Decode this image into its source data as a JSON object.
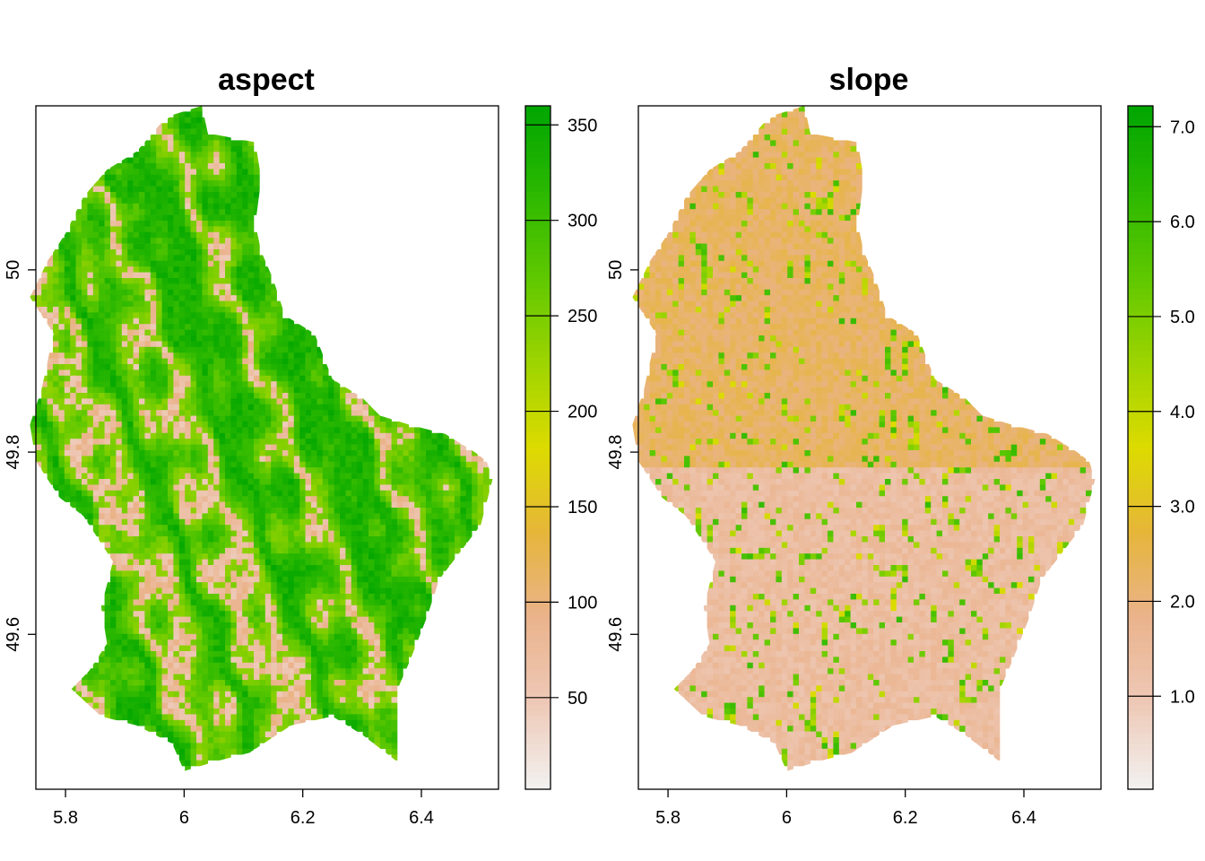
{
  "figure": {
    "colors": {
      "ramp": [
        "#F2F2F2",
        "#EEC9B7",
        "#EAB38D",
        "#E6B53B",
        "#DDDB00",
        "#9DD400",
        "#5FC800",
        "#2BB800",
        "#00A600"
      ],
      "frame": "#000000",
      "background": "#FFFFFF"
    }
  },
  "chart_data": [
    {
      "type": "heatmap",
      "title": "aspect",
      "xlabel": "",
      "ylabel": "",
      "x_ticks": [
        5.8,
        6,
        6.2,
        6.4
      ],
      "x_tick_labels": [
        "5.8",
        "6",
        "6.2",
        "6.4"
      ],
      "y_ticks": [
        49.6,
        49.8,
        50
      ],
      "y_tick_labels": [
        "49.6",
        "49.8",
        "50"
      ],
      "xlim": [
        5.75,
        6.53
      ],
      "ylim": [
        49.43,
        50.18
      ],
      "data_extent": {
        "x": [
          5.74,
          6.53
        ],
        "y": [
          49.45,
          50.18
        ]
      },
      "value_range": [
        0,
        360
      ],
      "legend": {
        "position": "right",
        "ticks": [
          50,
          100,
          150,
          200,
          250,
          300,
          350
        ],
        "tick_labels": [
          "50",
          "100",
          "150",
          "200",
          "250",
          "300",
          "350"
        ],
        "range": [
          2,
          360
        ]
      },
      "grid": false,
      "texture": "aspect"
    },
    {
      "type": "heatmap",
      "title": "slope",
      "xlabel": "",
      "ylabel": "",
      "x_ticks": [
        5.8,
        6,
        6.2,
        6.4
      ],
      "x_tick_labels": [
        "5.8",
        "6",
        "6.2",
        "6.4"
      ],
      "y_ticks": [
        49.6,
        49.8,
        50
      ],
      "y_tick_labels": [
        "49.6",
        "49.8",
        "50"
      ],
      "xlim": [
        5.75,
        6.53
      ],
      "ylim": [
        49.43,
        50.18
      ],
      "data_extent": {
        "x": [
          5.74,
          6.53
        ],
        "y": [
          49.45,
          50.18
        ]
      },
      "value_range": [
        0,
        7.2
      ],
      "legend": {
        "position": "right",
        "ticks": [
          1.0,
          2.0,
          3.0,
          4.0,
          5.0,
          6.0,
          7.0
        ],
        "tick_labels": [
          "1.0",
          "2.0",
          "3.0",
          "4.0",
          "5.0",
          "6.0",
          "7.0"
        ],
        "range": [
          0.02,
          7.22
        ]
      },
      "grid": false,
      "texture": "slope"
    }
  ]
}
